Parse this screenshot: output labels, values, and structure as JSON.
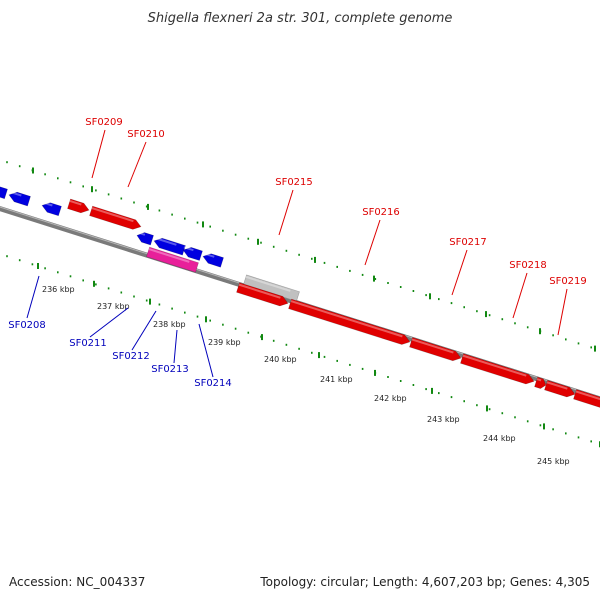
{
  "title": "Shigella flexneri 2a str. 301, complete genome",
  "footer": {
    "accession": "Accession: NC_004337",
    "summary": "Topology: circular; Length: 4,607,203 bp; Genes: 4,305"
  },
  "colors": {
    "forward_gene": "#e00000",
    "reverse_gene": "#0000e0",
    "rna_gene": "#e8209a",
    "pseudo_gene": "#c0c0c0",
    "backbone": "#7a7a7a",
    "ruler": "#118811",
    "forward_label": "#dd0000",
    "reverse_label": "#0000bb"
  },
  "ticks": [
    "236 kbp",
    "237 kbp",
    "238 kbp",
    "239 kbp",
    "240 kbp",
    "241 kbp",
    "242 kbp",
    "243 kbp",
    "244 kbp",
    "245 kbp"
  ],
  "labels": {
    "forward": [
      "SF0209",
      "SF0210",
      "SF0215",
      "SF0216",
      "SF0217",
      "SF0218",
      "SF0219"
    ],
    "reverse": [
      "SF0208",
      "SF0211",
      "SF0212",
      "SF0213",
      "SF0214"
    ]
  }
}
